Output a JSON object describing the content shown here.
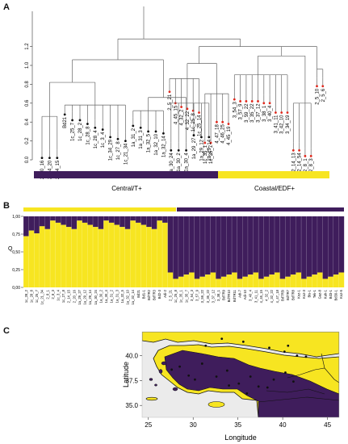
{
  "panels": {
    "a": "A",
    "b": "B",
    "c": "C"
  },
  "colors": {
    "purple": "#3f1d5c",
    "yellow": "#f7e521",
    "grey": "#bdbdbd",
    "tip_red": "#e0281c",
    "tip_black": "#111111",
    "map_bg": "#ebebeb"
  },
  "dendro": {
    "y_ticks": [
      "0.0",
      "0.2",
      "0.4",
      "0.6",
      "0.8",
      "1.0",
      "1.2"
    ],
    "groups": [
      "Central/T+",
      "Coastal/EDF+"
    ],
    "leaves_left": [
      "2_20_16",
      "2_14_20",
      "2_14_15",
      "Bd21",
      "1c_25_7",
      "1c_28_2",
      "1c_28_8",
      "1c_28_4",
      "1c_3_4",
      "1c_34_29",
      "1c_27_8",
      "1c_21_34",
      "1a_31_2",
      "1a_31_3",
      "1a_32_5",
      "1a_32_10",
      "1a_32_14",
      "1a_30_24",
      "1a_30_2",
      "1a_30_4",
      "1a_29_27",
      "1a_29_12",
      "1a_29_14"
    ],
    "leaves_right": [
      "2_5_21",
      "4_45_15",
      "4_32_2",
      "4_32_22",
      "1c_25_8",
      "1c_25_14",
      "1c_35_1",
      "1c_35_7",
      "4_47_18",
      "4_46_25",
      "4_45_19",
      "3_54_3",
      "3_57_9",
      "3_59_22",
      "3_35_22",
      "3_37_12",
      "3_38_1",
      "3_40_4",
      "3_41_11",
      "3_42_10",
      "3_34_19",
      "2_14_13",
      "2_14_54",
      "2_8_1",
      "2_8_3",
      "2_5_10",
      "2_5_6"
    ]
  },
  "structure": {
    "y_ticks": [
      "1,00",
      "0,75",
      "0,50",
      "0,25",
      "0,00"
    ],
    "ylabel": "Q",
    "labels": [
      "1c_28_2",
      "1c_28_8",
      "1c_25_7",
      "1c_21_34",
      "2_8_1",
      "2_8_3",
      "1c_3_4",
      "1c_27_8",
      "2_14_15",
      "2_20_16",
      "1a_29_27",
      "1a_29_12",
      "1a_29_14",
      "1a_30_24",
      "1a_30_2",
      "1a_30_4",
      "1a_31_2",
      "1a_31_3",
      "1a_32_5",
      "1a_32_10",
      "1a_32_14",
      "Bd21",
      "Bd1-1",
      "BdTR2",
      "BdTR3",
      "Bd2-3",
      "Adi-2",
      "2_5_21",
      "1c_25_8",
      "1c_35_1",
      "1c_35_7",
      "3_54_3",
      "3_57_9",
      "3_59_22",
      "3_35_22",
      "3_37_12",
      "3_38_1",
      "BdTR9",
      "BdTR10",
      "BdTR11",
      "Adi-7",
      "Adi-10",
      "3_40_4",
      "3_41_11",
      "4_45_15",
      "4_32_2",
      "4_32_22",
      "4_47_18",
      "BdTR5i",
      "BdTR7",
      "BdTR8",
      "Koz-1",
      "Koz-3",
      "Bis-1",
      "Tek-1",
      "Gaz-8",
      "Kah-1",
      "Bd3-1",
      "Bd30-1",
      "Koz-5"
    ]
  },
  "map": {
    "xlabel": "Longitude",
    "ylabel": "Latitude",
    "x_ticks": [
      "25",
      "30",
      "35",
      "40",
      "45"
    ],
    "y_ticks": [
      "35.0",
      "37.5",
      "40.0"
    ]
  }
}
